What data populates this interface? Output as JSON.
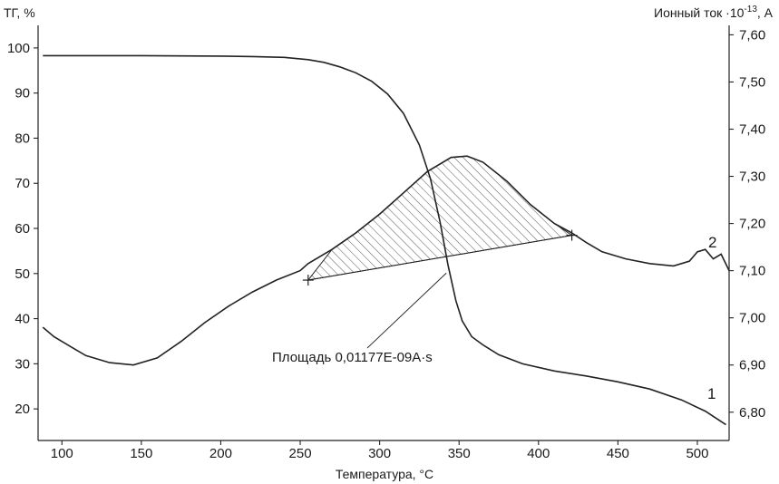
{
  "chart_data": {
    "type": "line",
    "xlabel": "Температура, °C",
    "ylabel_left": "ТГ, %",
    "ylabel_right_prefix": "Ионный ток ·10",
    "ylabel_right_exp": "-13",
    "ylabel_right_suffix": ", A",
    "xlim": [
      85,
      520
    ],
    "ylim_left": [
      13,
      105
    ],
    "ylim_right": [
      6.74,
      7.62
    ],
    "x_ticks": [
      "100",
      "150",
      "200",
      "250",
      "300",
      "350",
      "400",
      "450",
      "500"
    ],
    "y_left_ticks": [
      "20",
      "30",
      "40",
      "50",
      "60",
      "70",
      "80",
      "90",
      "100"
    ],
    "y_right_ticks": [
      "6,80",
      "6,90",
      "7,00",
      "7,10",
      "7,20",
      "7,30",
      "7,40",
      "7,50",
      "7,60"
    ],
    "grid": false,
    "series": [
      {
        "name": "1",
        "axis": "left",
        "x": [
          88,
          100,
          150,
          200,
          220,
          240,
          255,
          265,
          275,
          285,
          295,
          305,
          315,
          325,
          332,
          338,
          343,
          348,
          352,
          358,
          365,
          375,
          390,
          410,
          430,
          450,
          470,
          490,
          505,
          518
        ],
        "y": [
          98.3,
          98.3,
          98.3,
          98.2,
          98.1,
          97.9,
          97.4,
          96.8,
          95.8,
          94.5,
          92.6,
          89.8,
          85.5,
          78.5,
          71.0,
          61.5,
          52.0,
          44.0,
          39.5,
          36.0,
          34.2,
          32.0,
          30.0,
          28.4,
          27.3,
          26.0,
          24.4,
          22.0,
          19.5,
          16.5
        ]
      },
      {
        "name": "2",
        "axis": "right",
        "x": [
          88,
          95,
          105,
          115,
          130,
          145,
          160,
          175,
          190,
          205,
          220,
          235,
          250,
          255,
          270,
          285,
          300,
          315,
          330,
          345,
          355,
          365,
          380,
          395,
          410,
          421,
          430,
          440,
          455,
          470,
          485,
          495,
          500,
          505,
          510,
          515,
          520
        ],
        "y": [
          6.98,
          6.96,
          6.94,
          6.92,
          6.905,
          6.9,
          6.915,
          6.95,
          6.99,
          7.025,
          7.055,
          7.08,
          7.1,
          7.115,
          7.145,
          7.18,
          7.22,
          7.265,
          7.31,
          7.34,
          7.343,
          7.33,
          7.29,
          7.24,
          7.2,
          7.18,
          7.16,
          7.14,
          7.125,
          7.115,
          7.11,
          7.12,
          7.14,
          7.145,
          7.125,
          7.135,
          7.1
        ]
      }
    ],
    "integration": {
      "start": {
        "x": 255,
        "y": 7.08
      },
      "end": {
        "x": 421,
        "y": 7.175
      }
    },
    "annotation": "Площадь 0,01177E-09A·s",
    "annotation_point": {
      "x": 342,
      "y": 7.095
    }
  }
}
